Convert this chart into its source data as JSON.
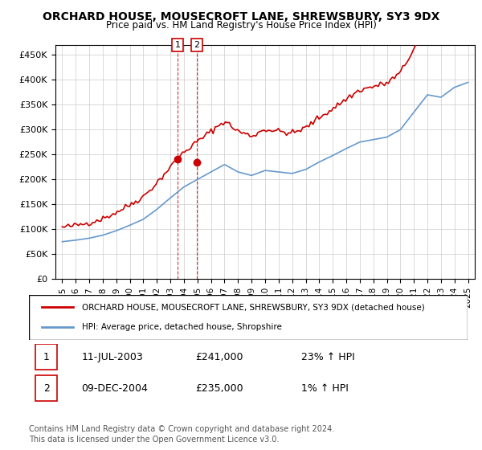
{
  "title": "ORCHARD HOUSE, MOUSECROFT LANE, SHREWSBURY, SY3 9DX",
  "subtitle": "Price paid vs. HM Land Registry's House Price Index (HPI)",
  "legend_line1": "ORCHARD HOUSE, MOUSECROFT LANE, SHREWSBURY, SY3 9DX (detached house)",
  "legend_line2": "HPI: Average price, detached house, Shropshire",
  "transactions": [
    {
      "num": 1,
      "date": "11-JUL-2003",
      "price": 241000,
      "hpi_change": "23% ↑ HPI",
      "x_year": 2003.53
    },
    {
      "num": 2,
      "date": "09-DEC-2004",
      "price": 235000,
      "hpi_change": "1% ↑ HPI",
      "x_year": 2004.94
    }
  ],
  "footer_line1": "Contains HM Land Registry data © Crown copyright and database right 2024.",
  "footer_line2": "This data is licensed under the Open Government Licence v3.0.",
  "ylim": [
    0,
    470000
  ],
  "yticks": [
    0,
    50000,
    100000,
    150000,
    200000,
    250000,
    300000,
    350000,
    400000,
    450000
  ],
  "xlim_start": 1994.5,
  "xlim_end": 2025.5,
  "hpi_color": "#6699cc",
  "price_color": "#cc0000",
  "marker_color": "#cc0000",
  "vline_color": "#cc0000",
  "box_color": "#cc0000",
  "background_color": "#ffffff",
  "grid_color": "#cccccc"
}
